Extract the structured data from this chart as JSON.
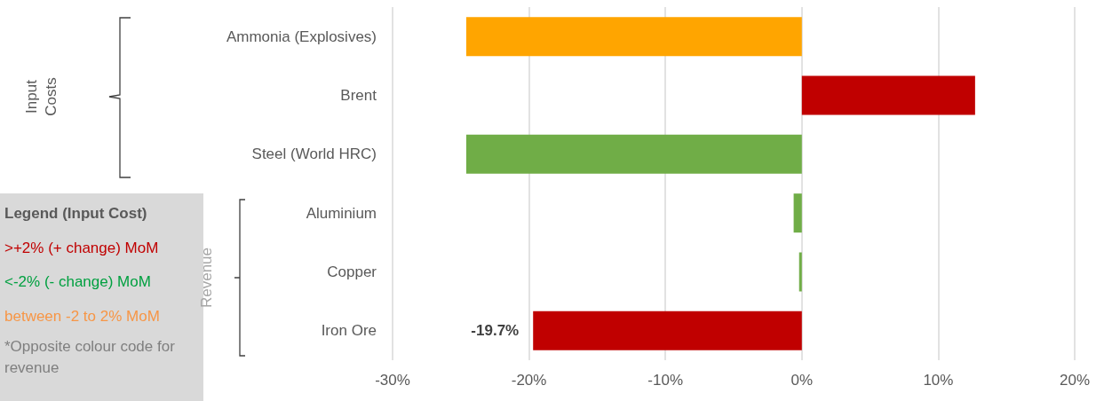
{
  "chart_data": {
    "type": "bar",
    "orientation": "horizontal",
    "categories": [
      "Ammonia (Explosives)",
      "Brent",
      "Steel (World HRC)",
      "Aluminium",
      "Copper",
      "Iron Ore"
    ],
    "values": [
      -24.6,
      12.7,
      -24.6,
      -0.6,
      -0.2,
      -19.7
    ],
    "colors": [
      "#ffa500",
      "#c00000",
      "#70ad47",
      "#70ad47",
      "#70ad47",
      "#c00000"
    ],
    "value_labels": [
      null,
      null,
      null,
      null,
      null,
      "-19.7%"
    ],
    "xlim": [
      -30,
      20
    ],
    "xticks": [
      {
        "value": -30,
        "label": "-30%"
      },
      {
        "value": -20,
        "label": "-20%"
      },
      {
        "value": -10,
        "label": "-10%"
      },
      {
        "value": 0,
        "label": "0%"
      },
      {
        "value": 10,
        "label": "10%"
      },
      {
        "value": 20,
        "label": "20%"
      }
    ],
    "grid": "x",
    "annotations": [
      "Input Costs",
      "Revenue",
      "Legend (Input Cost)",
      ">+2% (+ change) MoM",
      "<-2% (- change) MoM",
      "between -2 to 2% MoM",
      "*Opposite colour code for revenue"
    ]
  }
}
